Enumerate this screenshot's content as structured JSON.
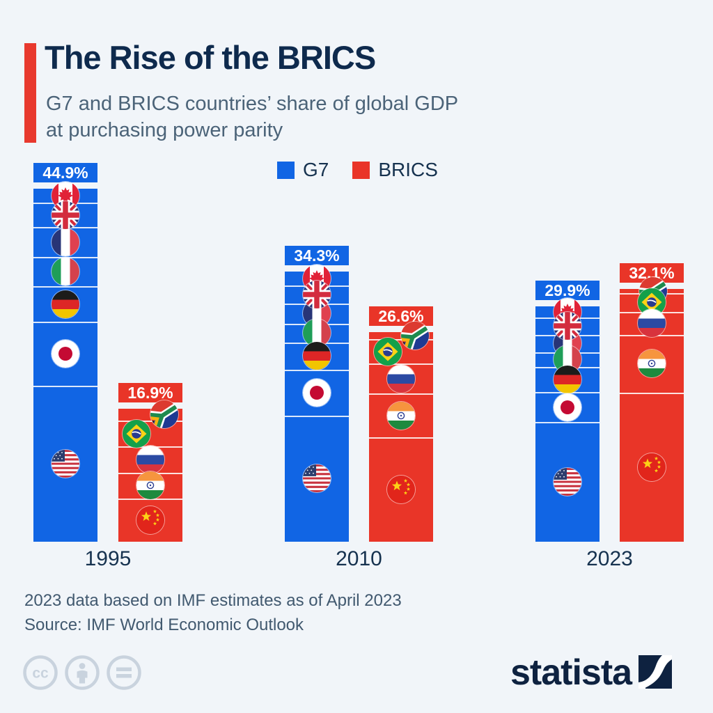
{
  "page": {
    "background": "#f1f5f9"
  },
  "header": {
    "title": "The Rise of the BRICS",
    "subtitle_line1": "G7 and BRICS countries’ share of global GDP",
    "subtitle_line2": "at purchasing power parity"
  },
  "legend": {
    "items": [
      {
        "label": "G7",
        "color": "#1165e4"
      },
      {
        "label": "BRICS",
        "color": "#e93528"
      }
    ]
  },
  "chart_data": {
    "type": "bar",
    "title": "G7 and BRICS countries’ share of global GDP at purchasing power parity",
    "unit": "% of global GDP (PPP)",
    "categories": [
      "1995",
      "2010",
      "2023"
    ],
    "legend_position": "top",
    "ylim": [
      0,
      50
    ],
    "series": [
      {
        "name": "G7",
        "color": "#1165e4",
        "totals": [
          44.9,
          34.3,
          29.9
        ],
        "total_labels": [
          "44.9%",
          "34.3%",
          "29.9%"
        ],
        "members": [
          {
            "name": "Canada",
            "flag": "canada",
            "values": [
              1.8,
              1.8,
              1.4
            ]
          },
          {
            "name": "United Kingdom",
            "flag": "uk",
            "values": [
              3.1,
              2.3,
              2.2
            ]
          },
          {
            "name": "France",
            "flag": "france",
            "values": [
              3.8,
              2.5,
              2.2
            ]
          },
          {
            "name": "Italy",
            "flag": "italy",
            "values": [
              3.7,
              2.4,
              1.9
            ]
          },
          {
            "name": "Germany",
            "flag": "germany",
            "values": [
              4.5,
              3.5,
              3.2
            ]
          },
          {
            "name": "Japan",
            "flag": "japan",
            "values": [
              8.1,
              5.8,
              3.8
            ]
          },
          {
            "name": "United States",
            "flag": "us",
            "values": [
              19.9,
              16.0,
              15.2
            ]
          }
        ]
      },
      {
        "name": "BRICS",
        "color": "#e93528",
        "totals": [
          16.9,
          26.6,
          32.1
        ],
        "total_labels": [
          "16.9%",
          "26.6%",
          "32.1%"
        ],
        "members": [
          {
            "name": "South Africa",
            "flag": "southafrica",
            "values": [
              1.5,
              0.9,
              0.5
            ]
          },
          {
            "name": "Brazil",
            "flag": "brazil",
            "values": [
              3.3,
              3.1,
              2.4
            ]
          },
          {
            "name": "Russia",
            "flag": "russia",
            "values": [
              3.3,
              3.8,
              2.9
            ]
          },
          {
            "name": "India",
            "flag": "india",
            "values": [
              3.3,
              5.6,
              7.4
            ]
          },
          {
            "name": "China",
            "flag": "china",
            "values": [
              5.5,
              13.2,
              18.9
            ]
          }
        ]
      }
    ]
  },
  "footer": {
    "note": "2023 data based on IMF estimates as of April 2023",
    "source": "Source: IMF World Economic Outlook"
  },
  "branding": {
    "logo_text": "statista",
    "license_icons": [
      "cc-icon",
      "attribution-icon",
      "equal-icon"
    ]
  }
}
